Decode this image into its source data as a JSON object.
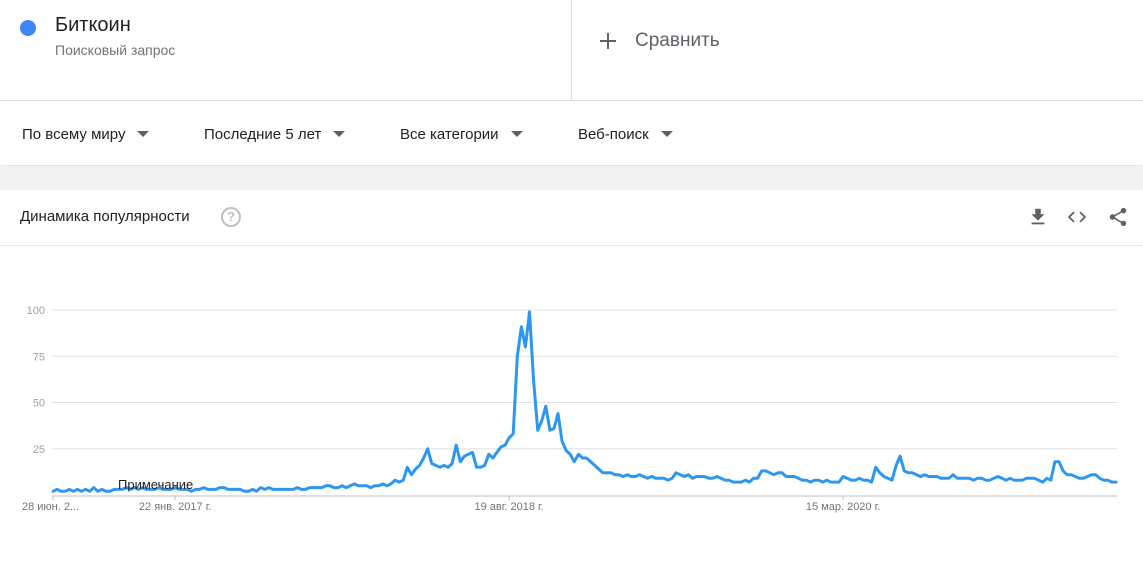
{
  "term": {
    "name": "Биткоин",
    "subtitle": "Поисковый запрос",
    "color": "#4285f4"
  },
  "compare": {
    "label": "Сравнить"
  },
  "filters": [
    {
      "label": "По всему миру"
    },
    {
      "label": "Последние 5 лет"
    },
    {
      "label": "Все категории"
    },
    {
      "label": "Веб-поиск"
    }
  ],
  "widget": {
    "title": "Динамика популярности",
    "note": "Примечание",
    "tools": [
      "download-icon",
      "embed-icon",
      "share-icon"
    ]
  },
  "chart_data": {
    "type": "line",
    "title": "Динамика популярности",
    "y_ticks": [
      "100",
      "75",
      "50",
      "25"
    ],
    "ylim": [
      0,
      100
    ],
    "x_tick_labels": [
      "28 июн. 2...",
      "22 янв. 2017 г.",
      "19 авг. 2018 г.",
      "15 мар. 2020 г."
    ],
    "x_tick_index": [
      0,
      30,
      112,
      194
    ],
    "grid": true,
    "color": "#2d97f0",
    "series": [
      {
        "values": [
          2,
          3,
          2,
          2,
          3,
          2,
          3,
          2,
          3,
          2,
          4,
          2,
          3,
          2,
          2,
          3,
          3,
          3,
          4,
          3,
          4,
          3,
          4,
          3,
          3,
          3,
          4,
          3,
          3,
          3,
          4,
          3,
          3,
          3,
          2,
          3,
          3,
          4,
          3,
          3,
          3,
          4,
          4,
          3,
          3,
          3,
          3,
          2,
          2,
          3,
          2,
          4,
          3,
          4,
          3,
          3,
          3,
          3,
          3,
          3,
          4,
          3,
          3,
          4,
          4,
          4,
          4,
          5,
          5,
          4,
          4,
          5,
          4,
          5,
          6,
          5,
          5,
          5,
          4,
          5,
          5,
          6,
          5,
          6,
          8,
          7,
          8,
          15,
          11,
          14,
          16,
          20,
          25,
          17,
          16,
          15,
          16,
          15,
          17,
          27,
          18,
          21,
          22,
          23,
          15,
          15,
          16,
          22,
          20,
          23,
          26,
          27,
          31,
          33,
          75,
          91,
          80,
          99,
          62,
          35,
          40,
          48,
          35,
          36,
          44,
          29,
          24,
          22,
          18,
          22,
          20,
          20,
          18,
          16,
          14,
          12,
          12,
          12,
          11,
          11,
          10,
          11,
          10,
          10,
          11,
          10,
          9,
          10,
          9,
          9,
          9,
          8,
          9,
          12,
          11,
          10,
          11,
          9,
          10,
          10,
          10,
          9,
          9,
          10,
          9,
          8,
          8,
          7,
          7,
          7,
          8,
          7,
          9,
          9,
          13,
          13,
          12,
          11,
          12,
          12,
          10,
          10,
          10,
          9,
          8,
          8,
          7,
          8,
          8,
          7,
          8,
          7,
          7,
          7,
          10,
          9,
          8,
          8,
          9,
          8,
          8,
          7,
          15,
          12,
          10,
          9,
          8,
          16,
          21,
          13,
          12,
          12,
          11,
          10,
          11,
          10,
          10,
          10,
          9,
          9,
          9,
          11,
          9,
          9,
          9,
          9,
          8,
          9,
          9,
          8,
          8,
          9,
          10,
          9,
          8,
          9,
          8,
          8,
          8,
          9,
          9,
          9,
          8,
          7,
          9,
          8,
          18,
          18,
          13,
          11,
          11,
          10,
          9,
          9,
          10,
          11,
          11,
          9,
          8,
          8,
          7,
          7
        ]
      }
    ]
  }
}
